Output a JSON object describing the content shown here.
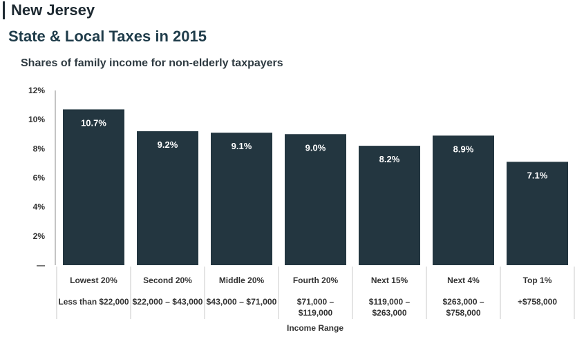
{
  "header": {
    "state": "New Jersey",
    "title": "State & Local Taxes in 2015",
    "subtitle": "Shares of family income for non-elderly taxpayers"
  },
  "colors": {
    "bar": "#233640",
    "bar_label": "#ffffff",
    "axis_text": "#333333",
    "divider": "#c9c9c9"
  },
  "chart_data": {
    "type": "bar",
    "title": "State & Local Taxes in 2015",
    "subtitle": "Shares of family income for non-elderly taxpayers",
    "xlabel": "Income Range",
    "ylabel": "",
    "ylim": [
      0,
      12
    ],
    "yticks": [
      "—",
      "2%",
      "4%",
      "6%",
      "8%",
      "10%",
      "12%"
    ],
    "ytick_values": [
      0,
      2,
      4,
      6,
      8,
      10,
      12
    ],
    "grid": false,
    "categories": [
      "Lowest 20%",
      "Second 20%",
      "Middle 20%",
      "Fourth 20%",
      "Next 15%",
      "Next 4%",
      "Top 1%"
    ],
    "ranges": [
      [
        "Less than $22,000"
      ],
      [
        "$22,000 – $43,000"
      ],
      [
        "$43,000 – $71,000"
      ],
      [
        "$71,000 –",
        "$119,000"
      ],
      [
        "$119,000 –",
        "$263,000"
      ],
      [
        "$263,000 –",
        "$758,000"
      ],
      [
        "+$758,000"
      ]
    ],
    "values": [
      10.7,
      9.2,
      9.1,
      9.0,
      8.2,
      8.9,
      7.1
    ],
    "data_labels": [
      "10.7%",
      "9.2%",
      "9.1%",
      "9.0%",
      "8.2%",
      "8.9%",
      "7.1%"
    ]
  }
}
